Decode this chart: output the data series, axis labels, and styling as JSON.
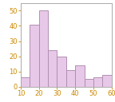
{
  "bar_lefts": [
    10,
    15,
    20,
    25,
    30,
    35,
    40,
    45,
    50,
    55
  ],
  "bar_widths": [
    5,
    5,
    5,
    5,
    5,
    5,
    5,
    5,
    5,
    5
  ],
  "bar_heights": [
    6,
    41,
    50,
    24,
    20,
    11,
    14,
    5,
    6,
    8
  ],
  "bar_color": "#e8c8e8",
  "edge_color": "#b090b0",
  "xlim": [
    10,
    60
  ],
  "ylim": [
    0,
    55
  ],
  "xticks": [
    10,
    20,
    30,
    40,
    50,
    60
  ],
  "yticks": [
    0,
    10,
    20,
    30,
    40,
    50
  ],
  "tick_color": "#cc8800",
  "tick_labelsize": 6,
  "spine_color": "#aaaaaa",
  "bg_color": "#ffffff",
  "grid": false
}
